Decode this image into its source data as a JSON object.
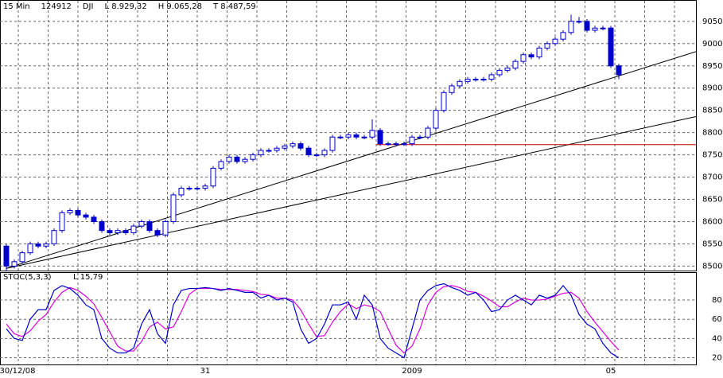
{
  "chart_data": [
    {
      "type": "candlestick",
      "header": [
        "15 Min",
        "124912",
        "DJI",
        "L 8.929,32",
        "H 9.065,28",
        "T 8.487,59"
      ],
      "color": "#0000cc",
      "categories": [
        null,
        "30/12/08",
        null,
        null,
        null,
        null,
        null,
        null,
        null,
        null,
        null,
        null,
        null,
        null,
        null,
        null,
        null,
        null,
        null,
        null,
        null,
        null,
        null,
        null,
        null,
        "31",
        null,
        null,
        null,
        null,
        null,
        null,
        null,
        null,
        null,
        null,
        null,
        null,
        null,
        null,
        null,
        null,
        null,
        null,
        null,
        null,
        null,
        null,
        null,
        null,
        null,
        "2009",
        null,
        null,
        null,
        null,
        null,
        null,
        null,
        null,
        null,
        null,
        null,
        null,
        null,
        null,
        null,
        null,
        null,
        null,
        null,
        null,
        null,
        null,
        null,
        null,
        "05",
        null
      ],
      "open": [
        8545,
        8500,
        8510,
        8530,
        8550,
        8545,
        8550,
        8580,
        8620,
        8625,
        8615,
        8610,
        8600,
        8580,
        8575,
        8580,
        8575,
        8590,
        8600,
        8580,
        8570,
        8600,
        8660,
        8675,
        8675,
        8675,
        8680,
        8720,
        8735,
        8745,
        8735,
        8740,
        8750,
        8760,
        8760,
        8765,
        8770,
        8775,
        8765,
        8750,
        8750,
        8760,
        8790,
        8790,
        8795,
        8790,
        8790,
        8805,
        8775,
        8775,
        8775,
        8775,
        8790,
        8790,
        8810,
        8850,
        8890,
        8905,
        8915,
        8920,
        8920,
        8920,
        8930,
        8940,
        8945,
        8960,
        8975,
        8970,
        8990,
        9000,
        9010,
        9025,
        9050,
        9050,
        9030,
        9035,
        9035,
        8950
      ],
      "high": [
        8550,
        8515,
        8535,
        8555,
        8555,
        8555,
        8585,
        8625,
        8630,
        8630,
        8620,
        8615,
        8605,
        8585,
        8585,
        8585,
        8595,
        8605,
        8605,
        8585,
        8605,
        8665,
        8680,
        8680,
        8680,
        8685,
        8725,
        8740,
        8750,
        8750,
        8745,
        8755,
        8765,
        8765,
        8770,
        8775,
        8780,
        8780,
        8770,
        8755,
        8765,
        8795,
        8795,
        8800,
        8800,
        8795,
        8830,
        8810,
        8780,
        8780,
        8780,
        8795,
        8795,
        8815,
        8855,
        8895,
        8910,
        8920,
        8925,
        8925,
        8925,
        8935,
        8945,
        8950,
        8965,
        8980,
        8980,
        8995,
        9005,
        9015,
        9030,
        9065,
        9060,
        9055,
        9040,
        9040,
        9040,
        8955
      ],
      "low": [
        8488,
        8495,
        8505,
        8525,
        8540,
        8540,
        8545,
        8575,
        8615,
        8610,
        8605,
        8595,
        8575,
        8570,
        8570,
        8570,
        8570,
        8585,
        8575,
        8565,
        8565,
        8595,
        8655,
        8670,
        8670,
        8670,
        8675,
        8715,
        8730,
        8730,
        8730,
        8735,
        8745,
        8755,
        8755,
        8760,
        8765,
        8760,
        8745,
        8745,
        8745,
        8755,
        8785,
        8785,
        8785,
        8785,
        8785,
        8770,
        8770,
        8770,
        8770,
        8770,
        8785,
        8785,
        8805,
        8845,
        8885,
        8900,
        8910,
        8915,
        8915,
        8915,
        8925,
        8935,
        8940,
        8955,
        8965,
        8965,
        8985,
        8995,
        9005,
        9020,
        9045,
        9025,
        9025,
        9030,
        8945,
        8920
      ],
      "close": [
        8500,
        8510,
        8530,
        8550,
        8545,
        8550,
        8580,
        8620,
        8625,
        8615,
        8610,
        8600,
        8580,
        8575,
        8580,
        8575,
        8590,
        8600,
        8580,
        8570,
        8600,
        8660,
        8675,
        8675,
        8675,
        8680,
        8720,
        8735,
        8745,
        8735,
        8740,
        8750,
        8760,
        8760,
        8765,
        8770,
        8775,
        8765,
        8750,
        8750,
        8760,
        8790,
        8790,
        8795,
        8790,
        8790,
        8805,
        8775,
        8775,
        8775,
        8775,
        8790,
        8790,
        8810,
        8850,
        8890,
        8905,
        8915,
        8920,
        8920,
        8920,
        8930,
        8940,
        8945,
        8960,
        8975,
        8970,
        8990,
        9000,
        9010,
        9025,
        9050,
        9050,
        9030,
        9035,
        9035,
        8950,
        8930
      ],
      "trend_lines": [
        {
          "start": [
            0,
            8495
          ],
          "end": [
            86.7,
            8982
          ],
          "color": "#000000"
        },
        {
          "start": [
            0,
            8495
          ],
          "end": [
            86.7,
            8836
          ],
          "color": "#000000"
        },
        {
          "start": [
            46.5,
            8773
          ],
          "end": [
            86.7,
            8773
          ],
          "color": "#cc0000"
        }
      ],
      "ylim": [
        8490,
        9098
      ],
      "yticks": [
        8500,
        8550,
        8600,
        8650,
        8700,
        8750,
        8800,
        8850,
        8900,
        8950,
        9000,
        9050
      ],
      "grid": true
    },
    {
      "type": "line",
      "title": "STOC(5,3,3)",
      "annotation": "L 15,79",
      "series": [
        {
          "color": "#0000cc",
          "values": [
            50,
            40,
            38,
            60,
            70,
            70,
            90,
            95,
            92,
            85,
            75,
            70,
            40,
            30,
            25,
            25,
            30,
            55,
            70,
            45,
            35,
            75,
            90,
            92,
            92,
            93,
            92,
            90,
            92,
            90,
            88,
            88,
            82,
            85,
            80,
            82,
            78,
            50,
            35,
            40,
            55,
            75,
            75,
            78,
            60,
            85,
            75,
            40,
            30,
            25,
            20,
            50,
            80,
            90,
            95,
            97,
            93,
            90,
            85,
            88,
            80,
            68,
            70,
            80,
            85,
            80,
            75,
            85,
            82,
            85,
            95,
            85,
            65,
            55,
            50,
            35,
            25,
            20
          ]
        },
        {
          "color": "#dd00dd",
          "values": [
            55,
            45,
            42,
            48,
            58,
            65,
            78,
            88,
            93,
            90,
            84,
            76,
            62,
            47,
            32,
            27,
            27,
            37,
            52,
            57,
            50,
            52,
            68,
            86,
            92,
            92,
            92,
            91,
            91,
            91,
            90,
            89,
            86,
            85,
            82,
            82,
            80,
            70,
            55,
            42,
            43,
            57,
            68,
            76,
            71,
            75,
            73,
            68,
            50,
            33,
            25,
            32,
            50,
            75,
            88,
            94,
            95,
            93,
            89,
            88,
            84,
            79,
            73,
            73,
            78,
            82,
            80,
            80,
            81,
            84,
            87,
            88,
            82,
            68,
            57,
            47,
            37,
            28
          ]
        }
      ],
      "ylim": [
        13,
        109
      ],
      "yticks": [
        20,
        40,
        60,
        80
      ],
      "grid": true
    }
  ]
}
